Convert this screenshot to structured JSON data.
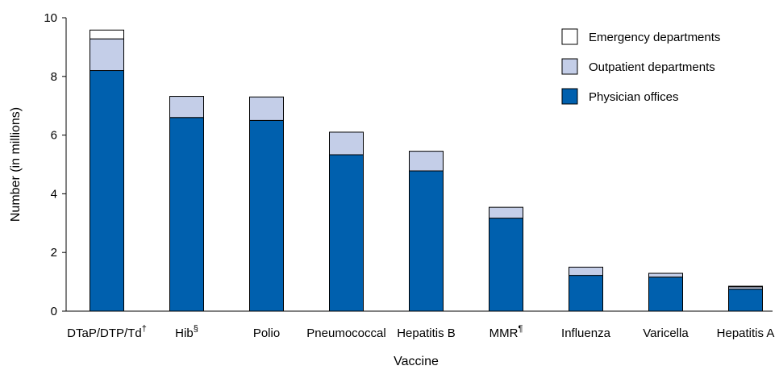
{
  "chart_data": {
    "type": "bar",
    "stacked": true,
    "title": "",
    "xlabel": "Vaccine",
    "ylabel": "Number (in millions)",
    "ylim": [
      0,
      10
    ],
    "yticks": [
      "0",
      "2",
      "4",
      "6",
      "8",
      "10"
    ],
    "grid": false,
    "legend_position": "top-right",
    "categories": [
      {
        "name": "DTaP/DTP/Td",
        "mark": "†"
      },
      {
        "name": "Hib",
        "mark": "§"
      },
      {
        "name": "Polio",
        "mark": ""
      },
      {
        "name": "Pneumococcal",
        "mark": ""
      },
      {
        "name": "Hepatitis B",
        "mark": ""
      },
      {
        "name": "MMR",
        "mark": "¶"
      },
      {
        "name": "Influenza",
        "mark": ""
      },
      {
        "name": "Varicella",
        "mark": ""
      },
      {
        "name": "Hepatitis A",
        "mark": ""
      }
    ],
    "series": [
      {
        "name": "Physician offices",
        "color": "#0060ae",
        "values": [
          8.2,
          6.6,
          6.5,
          5.33,
          4.78,
          3.17,
          1.22,
          1.16,
          0.75
        ]
      },
      {
        "name": "Outpatient departments",
        "color": "#c4cee8",
        "values": [
          1.08,
          0.72,
          0.8,
          0.77,
          0.67,
          0.37,
          0.28,
          0.13,
          0.08
        ]
      },
      {
        "name": "Emergency departments",
        "color": "#ffffff",
        "values": [
          0.3,
          0.0,
          0.0,
          0.0,
          0.0,
          0.0,
          0.0,
          0.0,
          0.02
        ]
      }
    ],
    "legend_order": [
      "Emergency departments",
      "Outpatient departments",
      "Physician offices"
    ]
  }
}
